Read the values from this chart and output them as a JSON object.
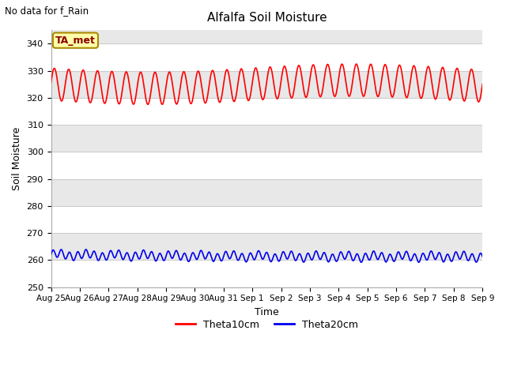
{
  "title": "Alfalfa Soil Moisture",
  "top_left_text": "No data for f_Rain",
  "xlabel": "Time",
  "ylabel": "Soil Moisture",
  "ylim": [
    250,
    345
  ],
  "yticks": [
    250,
    260,
    270,
    280,
    290,
    300,
    310,
    320,
    330,
    340
  ],
  "theta10_color": "#FF0000",
  "theta20_color": "#0000EE",
  "legend_label_ta": "TA_met",
  "legend_label_10": "Theta10cm",
  "legend_label_20": "Theta20cm",
  "band_colors_even": "#FFFFFF",
  "band_colors_odd": "#E8E8E8",
  "band_edges": [
    250,
    260,
    270,
    280,
    290,
    300,
    310,
    320,
    330,
    340,
    350
  ],
  "x_tick_labels": [
    "Aug 25",
    "Aug 26",
    "Aug 27",
    "Aug 28",
    "Aug 29",
    "Aug 30",
    "Aug 31",
    "Sep 1",
    "Sep 2",
    "Sep 3",
    "Sep 4",
    "Sep 5",
    "Sep 6",
    "Sep 7",
    "Sep 8",
    "Sep 9"
  ],
  "num_days": 15
}
